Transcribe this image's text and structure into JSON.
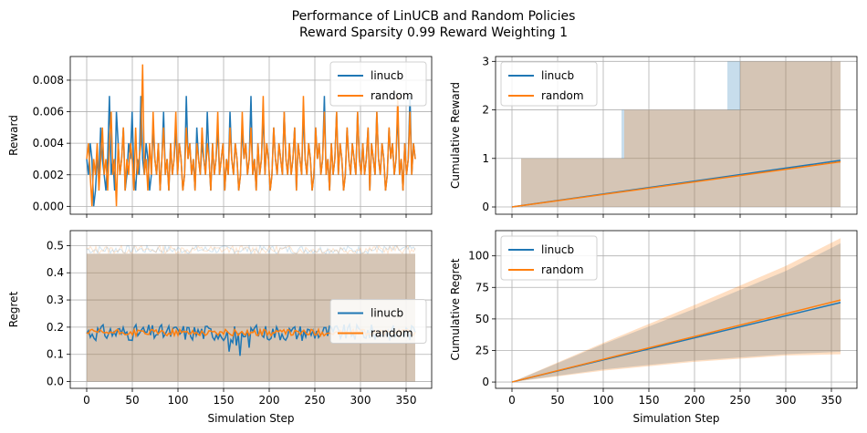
{
  "figure": {
    "title_line1": "Performance of LinUCB and Random Policies",
    "title_line2": "Reward Sparsity 0.99 Reward Weighting 1"
  },
  "colors": {
    "linucb": "#1f77b4",
    "random": "#ff7f0e",
    "band_overlap": "#c8b49e"
  },
  "chart_data": [
    {
      "type": "line",
      "ylabel": "Reward",
      "xlabel": "",
      "xlim": [
        -18,
        378
      ],
      "ylim": [
        -0.0005,
        0.0095
      ],
      "yticks": [
        "0.000",
        "0.002",
        "0.004",
        "0.006",
        "0.008"
      ],
      "ytick_values": [
        0,
        0.002,
        0.004,
        0.006,
        0.008
      ],
      "xticks": [
        0,
        50,
        100,
        150,
        200,
        250,
        300,
        350
      ],
      "xtick_labels_visible": false,
      "legend_loc": "upper right",
      "series": [
        {
          "name": "linucb",
          "x_range": [
            0,
            360
          ],
          "pattern": "noisy",
          "values": [
            0.003,
            0.002,
            0.004,
            0.003,
            0.0,
            0.001,
            0.003,
            0.002,
            0.005,
            0.003,
            0.002,
            0.001,
            0.003,
            0.007,
            0.002,
            0.003,
            0.001,
            0.006,
            0.004,
            0.002,
            0.003,
            0.005,
            0.001,
            0.002,
            0.004,
            0.003,
            0.006,
            0.002,
            0.001,
            0.003,
            0.002,
            0.007,
            0.003,
            0.002,
            0.004,
            0.003,
            0.001,
            0.002,
            0.005,
            0.003,
            0.002,
            0.004,
            0.001,
            0.003,
            0.006,
            0.002,
            0.003,
            0.001,
            0.004,
            0.002,
            0.003,
            0.005,
            0.002,
            0.004,
            0.003,
            0.001,
            0.002,
            0.007,
            0.003,
            0.004,
            0.002,
            0.003,
            0.001,
            0.005,
            0.003,
            0.002,
            0.004,
            0.003,
            0.002,
            0.006,
            0.003,
            0.001,
            0.004,
            0.002,
            0.003,
            0.005,
            0.002,
            0.003,
            0.004,
            0.001,
            0.003,
            0.002,
            0.006,
            0.003,
            0.002,
            0.004,
            0.003,
            0.001,
            0.002,
            0.005,
            0.003,
            0.004,
            0.002,
            0.003,
            0.007,
            0.002,
            0.003,
            0.001,
            0.004,
            0.002,
            0.003,
            0.006,
            0.002,
            0.004,
            0.003,
            0.001,
            0.002,
            0.005,
            0.003,
            0.002,
            0.004,
            0.003,
            0.002,
            0.006,
            0.003,
            0.002,
            0.004,
            0.002,
            0.003,
            0.005,
            0.001,
            0.004,
            0.003,
            0.002,
            0.006,
            0.003,
            0.002,
            0.004,
            0.003,
            0.001,
            0.002,
            0.005,
            0.003,
            0.004,
            0.002,
            0.003,
            0.007,
            0.002,
            0.003,
            0.001,
            0.004,
            0.002,
            0.003,
            0.006,
            0.002,
            0.004,
            0.003,
            0.001,
            0.002,
            0.005,
            0.003,
            0.002,
            0.004,
            0.003,
            0.002,
            0.006,
            0.003,
            0.002,
            0.004,
            0.002,
            0.003,
            0.005,
            0.001,
            0.004,
            0.003,
            0.002,
            0.006,
            0.003,
            0.002,
            0.004,
            0.003,
            0.001,
            0.002,
            0.005,
            0.003,
            0.004,
            0.002,
            0.003,
            0.006,
            0.002,
            0.003,
            0.001,
            0.004,
            0.002,
            0.003,
            0.007,
            0.002,
            0.004,
            0.003
          ]
        },
        {
          "name": "random",
          "x_range": [
            0,
            360
          ],
          "pattern": "noisy",
          "values": [
            0.003,
            0.004,
            0.002,
            0.0,
            0.003,
            0.002,
            0.004,
            0.001,
            0.003,
            0.005,
            0.002,
            0.003,
            0.001,
            0.004,
            0.006,
            0.002,
            0.003,
            0.0,
            0.004,
            0.002,
            0.003,
            0.005,
            0.001,
            0.003,
            0.002,
            0.004,
            0.003,
            0.001,
            0.005,
            0.002,
            0.003,
            0.004,
            0.009,
            0.002,
            0.003,
            0.001,
            0.004,
            0.002,
            0.006,
            0.003,
            0.002,
            0.004,
            0.001,
            0.003,
            0.005,
            0.002,
            0.003,
            0.001,
            0.004,
            0.002,
            0.003,
            0.006,
            0.002,
            0.004,
            0.003,
            0.001,
            0.002,
            0.005,
            0.003,
            0.004,
            0.002,
            0.003,
            0.001,
            0.004,
            0.003,
            0.002,
            0.005,
            0.003,
            0.002,
            0.004,
            0.003,
            0.001,
            0.004,
            0.002,
            0.003,
            0.006,
            0.002,
            0.003,
            0.004,
            0.001,
            0.003,
            0.002,
            0.005,
            0.003,
            0.002,
            0.004,
            0.003,
            0.001,
            0.002,
            0.006,
            0.003,
            0.004,
            0.002,
            0.003,
            0.005,
            0.002,
            0.003,
            0.001,
            0.004,
            0.002,
            0.003,
            0.007,
            0.002,
            0.004,
            0.003,
            0.001,
            0.002,
            0.005,
            0.003,
            0.002,
            0.004,
            0.003,
            0.002,
            0.006,
            0.003,
            0.002,
            0.004,
            0.002,
            0.003,
            0.005,
            0.001,
            0.004,
            0.003,
            0.002,
            0.007,
            0.003,
            0.002,
            0.004,
            0.003,
            0.001,
            0.002,
            0.005,
            0.003,
            0.004,
            0.002,
            0.003,
            0.006,
            0.002,
            0.003,
            0.001,
            0.004,
            0.002,
            0.003,
            0.006,
            0.002,
            0.004,
            0.003,
            0.001,
            0.002,
            0.005,
            0.003,
            0.002,
            0.004,
            0.003,
            0.002,
            0.006,
            0.003,
            0.002,
            0.004,
            0.002,
            0.003,
            0.005,
            0.001,
            0.004,
            0.003,
            0.002,
            0.006,
            0.003,
            0.002,
            0.004,
            0.003,
            0.001,
            0.002,
            0.005,
            0.003,
            0.004,
            0.002,
            0.003,
            0.007,
            0.002,
            0.003,
            0.001,
            0.004,
            0.002,
            0.003,
            0.006,
            0.002,
            0.004,
            0.003
          ]
        }
      ]
    },
    {
      "type": "line",
      "ylabel": "Cumulative Reward",
      "xlabel": "",
      "xlim": [
        -18,
        378
      ],
      "ylim": [
        -0.15,
        3.1
      ],
      "yticks": [
        "0",
        "1",
        "2",
        "3"
      ],
      "ytick_values": [
        0,
        1,
        2,
        3
      ],
      "xticks": [
        0,
        50,
        100,
        150,
        200,
        250,
        300,
        350
      ],
      "xtick_labels_visible": false,
      "legend_loc": "upper left",
      "series": [
        {
          "name": "linucb",
          "x": [
            0,
            360
          ],
          "y": [
            0,
            0.96
          ],
          "band": {
            "x": [
              0,
              10,
              10,
              120,
              120,
              236,
              236,
              250,
              250,
              360
            ],
            "lower": [
              0,
              0,
              0,
              0,
              0,
              0,
              0,
              0,
              0,
              0
            ],
            "upper": [
              0,
              0,
              1,
              1,
              2,
              2,
              3,
              3,
              3,
              3
            ]
          }
        },
        {
          "name": "random",
          "x": [
            0,
            360
          ],
          "y": [
            0,
            0.93
          ],
          "band": {
            "x": [
              0,
              10,
              10,
              123,
              123,
              250,
              250,
              360
            ],
            "lower": [
              0,
              0,
              0,
              0,
              0,
              0,
              0,
              0
            ],
            "upper": [
              0,
              0,
              1,
              1,
              2,
              2,
              3,
              3
            ]
          }
        }
      ]
    },
    {
      "type": "line",
      "ylabel": "Regret",
      "xlabel": "Simulation Step",
      "xlim": [
        -18,
        378
      ],
      "ylim": [
        -0.025,
        0.555
      ],
      "yticks": [
        "0.0",
        "0.1",
        "0.2",
        "0.3",
        "0.4",
        "0.5"
      ],
      "ytick_values": [
        0,
        0.1,
        0.2,
        0.3,
        0.4,
        0.5
      ],
      "xticks": [
        0,
        50,
        100,
        150,
        200,
        250,
        300,
        350
      ],
      "xtick_labels_visible": true,
      "legend_loc": "center right",
      "series": [
        {
          "name": "linucb",
          "x_range": [
            0,
            360
          ],
          "mean": 0.18,
          "noise": 0.03,
          "band": {
            "lower": 0.0,
            "upper": 0.47
          }
        },
        {
          "name": "random",
          "x_range": [
            0,
            360
          ],
          "mean": 0.18,
          "noise": 0.012,
          "band": {
            "lower": 0.0,
            "upper": 0.47
          }
        }
      ]
    },
    {
      "type": "line",
      "ylabel": "Cumulative Regret",
      "xlabel": "Simulation Step",
      "xlim": [
        -18,
        378
      ],
      "ylim": [
        -5,
        120
      ],
      "yticks": [
        "0",
        "25",
        "50",
        "75",
        "100"
      ],
      "ytick_values": [
        0,
        25,
        50,
        75,
        100
      ],
      "xticks": [
        0,
        50,
        100,
        150,
        200,
        250,
        300,
        350
      ],
      "xtick_labels_visible": true,
      "legend_loc": "upper left",
      "series": [
        {
          "name": "linucb",
          "x": [
            0,
            360
          ],
          "y": [
            0,
            63
          ],
          "band": {
            "x": [
              0,
              100,
              200,
              300,
              360
            ],
            "lower": [
              0,
              10,
              17,
              22,
              24
            ],
            "upper": [
              0,
              30,
              58,
              88,
              110
            ]
          }
        },
        {
          "name": "random",
          "x": [
            0,
            360
          ],
          "y": [
            0,
            65
          ],
          "band": {
            "x": [
              0,
              100,
              200,
              300,
              360
            ],
            "lower": [
              0,
              9,
              16,
              21,
              22
            ],
            "upper": [
              0,
              31,
              61,
              92,
              114
            ]
          }
        }
      ]
    }
  ]
}
